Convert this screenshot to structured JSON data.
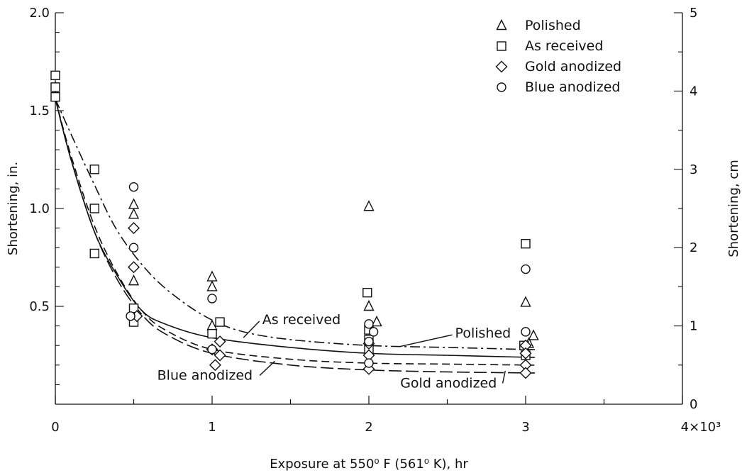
{
  "chart_data": {
    "type": "scatter",
    "title": "",
    "xlabel": "Exposure at 550⁰ F (561⁰ K), hr",
    "ylabel_left": "Shortening, in.",
    "ylabel_right": "Shortening, cm",
    "xlim": [
      0,
      4000
    ],
    "ylim_left": [
      0,
      2.0
    ],
    "ylim_right": [
      0,
      5
    ],
    "x_ticks": [
      {
        "value": 0,
        "label": "0"
      },
      {
        "value": 1000,
        "label": "1"
      },
      {
        "value": 2000,
        "label": "2"
      },
      {
        "value": 3000,
        "label": "3"
      },
      {
        "value": 4000,
        "label": "4×10³"
      }
    ],
    "y_left_ticks": [
      {
        "value": 0.5,
        "label": "0.5"
      },
      {
        "value": 1.0,
        "label": "1.0"
      },
      {
        "value": 1.5,
        "label": "1.5"
      },
      {
        "value": 2.0,
        "label": "2.0"
      }
    ],
    "y_right_ticks": [
      {
        "value": 0,
        "label": "0"
      },
      {
        "value": 1,
        "label": "1"
      },
      {
        "value": 2,
        "label": "2"
      },
      {
        "value": 3,
        "label": "3"
      },
      {
        "value": 4,
        "label": "4"
      },
      {
        "value": 5,
        "label": "5"
      }
    ],
    "legend_position": "top-right",
    "series": [
      {
        "name": "Polished",
        "marker": "triangle",
        "points": [
          [
            500,
            1.02
          ],
          [
            500,
            0.97
          ],
          [
            500,
            0.63
          ],
          [
            1000,
            0.65
          ],
          [
            1000,
            0.6
          ],
          [
            1000,
            0.4
          ],
          [
            2000,
            1.01
          ],
          [
            2000,
            0.5
          ],
          [
            2050,
            0.42
          ],
          [
            3000,
            0.52
          ],
          [
            3050,
            0.35
          ],
          [
            3020,
            0.31
          ]
        ]
      },
      {
        "name": "As received",
        "marker": "square",
        "points": [
          [
            0,
            1.68
          ],
          [
            0,
            1.62
          ],
          [
            0,
            1.57
          ],
          [
            250,
            1.2
          ],
          [
            250,
            1.0
          ],
          [
            250,
            0.77
          ],
          [
            500,
            0.49
          ],
          [
            500,
            0.42
          ],
          [
            1000,
            0.36
          ],
          [
            1050,
            0.42
          ],
          [
            1990,
            0.57
          ],
          [
            2000,
            0.38
          ],
          [
            2000,
            0.33
          ],
          [
            2000,
            0.28
          ],
          [
            3000,
            0.82
          ],
          [
            2990,
            0.3
          ],
          [
            3000,
            0.25
          ]
        ]
      },
      {
        "name": "Gold anodized",
        "marker": "diamond",
        "points": [
          [
            500,
            0.9
          ],
          [
            500,
            0.7
          ],
          [
            520,
            0.45
          ],
          [
            1000,
            0.28
          ],
          [
            1050,
            0.32
          ],
          [
            1050,
            0.25
          ],
          [
            1020,
            0.2
          ],
          [
            2000,
            0.31
          ],
          [
            2000,
            0.25
          ],
          [
            2000,
            0.18
          ],
          [
            3000,
            0.3
          ],
          [
            3000,
            0.26
          ],
          [
            3000,
            0.2
          ],
          [
            3000,
            0.16
          ]
        ]
      },
      {
        "name": "Blue anodized",
        "marker": "circle",
        "points": [
          [
            500,
            1.11
          ],
          [
            500,
            0.8
          ],
          [
            480,
            0.45
          ],
          [
            1000,
            0.54
          ],
          [
            1000,
            0.28
          ],
          [
            2000,
            0.41
          ],
          [
            2030,
            0.37
          ],
          [
            2000,
            0.32
          ],
          [
            2000,
            0.21
          ],
          [
            3000,
            0.69
          ],
          [
            3000,
            0.37
          ]
        ]
      }
    ],
    "fit_curves": [
      {
        "name": "Polished",
        "style": "dash-dot",
        "points": [
          [
            0,
            1.56
          ],
          [
            100,
            1.38
          ],
          [
            250,
            1.12
          ],
          [
            400,
            0.88
          ],
          [
            600,
            0.67
          ],
          [
            800,
            0.53
          ],
          [
            1000,
            0.43
          ],
          [
            1200,
            0.37
          ],
          [
            1500,
            0.33
          ],
          [
            2000,
            0.3
          ],
          [
            2500,
            0.29
          ],
          [
            3000,
            0.28
          ],
          [
            3050,
            0.28
          ]
        ]
      },
      {
        "name": "As received",
        "style": "solid",
        "points": [
          [
            0,
            1.56
          ],
          [
            100,
            1.25
          ],
          [
            250,
            0.88
          ],
          [
            400,
            0.65
          ],
          [
            550,
            0.48
          ],
          [
            700,
            0.41
          ],
          [
            1000,
            0.34
          ],
          [
            1500,
            0.29
          ],
          [
            2000,
            0.26
          ],
          [
            2500,
            0.25
          ],
          [
            3000,
            0.24
          ],
          [
            3050,
            0.24
          ]
        ]
      },
      {
        "name": "Gold anodized",
        "style": "long-dash",
        "points": [
          [
            0,
            1.56
          ],
          [
            100,
            1.25
          ],
          [
            250,
            0.88
          ],
          [
            400,
            0.63
          ],
          [
            550,
            0.46
          ],
          [
            700,
            0.36
          ],
          [
            1000,
            0.26
          ],
          [
            1500,
            0.2
          ],
          [
            2000,
            0.175
          ],
          [
            2500,
            0.165
          ],
          [
            3000,
            0.16
          ],
          [
            3050,
            0.16
          ]
        ]
      },
      {
        "name": "Blue anodized",
        "style": "dashed",
        "points": [
          [
            0,
            1.56
          ],
          [
            100,
            1.27
          ],
          [
            250,
            0.91
          ],
          [
            400,
            0.66
          ],
          [
            550,
            0.48
          ],
          [
            700,
            0.38
          ],
          [
            1000,
            0.28
          ],
          [
            1500,
            0.23
          ],
          [
            2000,
            0.21
          ],
          [
            2500,
            0.205
          ],
          [
            3000,
            0.2
          ],
          [
            3050,
            0.2
          ]
        ]
      }
    ],
    "annotations": [
      {
        "text": "As received",
        "label_x": 1320,
        "label_y": 0.41,
        "arrow_to_x": 1200,
        "arrow_to_y": 0.34
      },
      {
        "text": "Polished",
        "label_x": 2550,
        "label_y": 0.34,
        "arrow_to_x": 2200,
        "arrow_to_y": 0.295
      },
      {
        "text": "Blue anodized",
        "label_x": 650,
        "label_y": 0.125,
        "arrow_to_x": 1400,
        "arrow_to_y": 0.22
      },
      {
        "text": "Gold anodized",
        "label_x": 2200,
        "label_y": 0.085,
        "arrow_to_x": 2870,
        "arrow_to_y": 0.17
      }
    ]
  }
}
